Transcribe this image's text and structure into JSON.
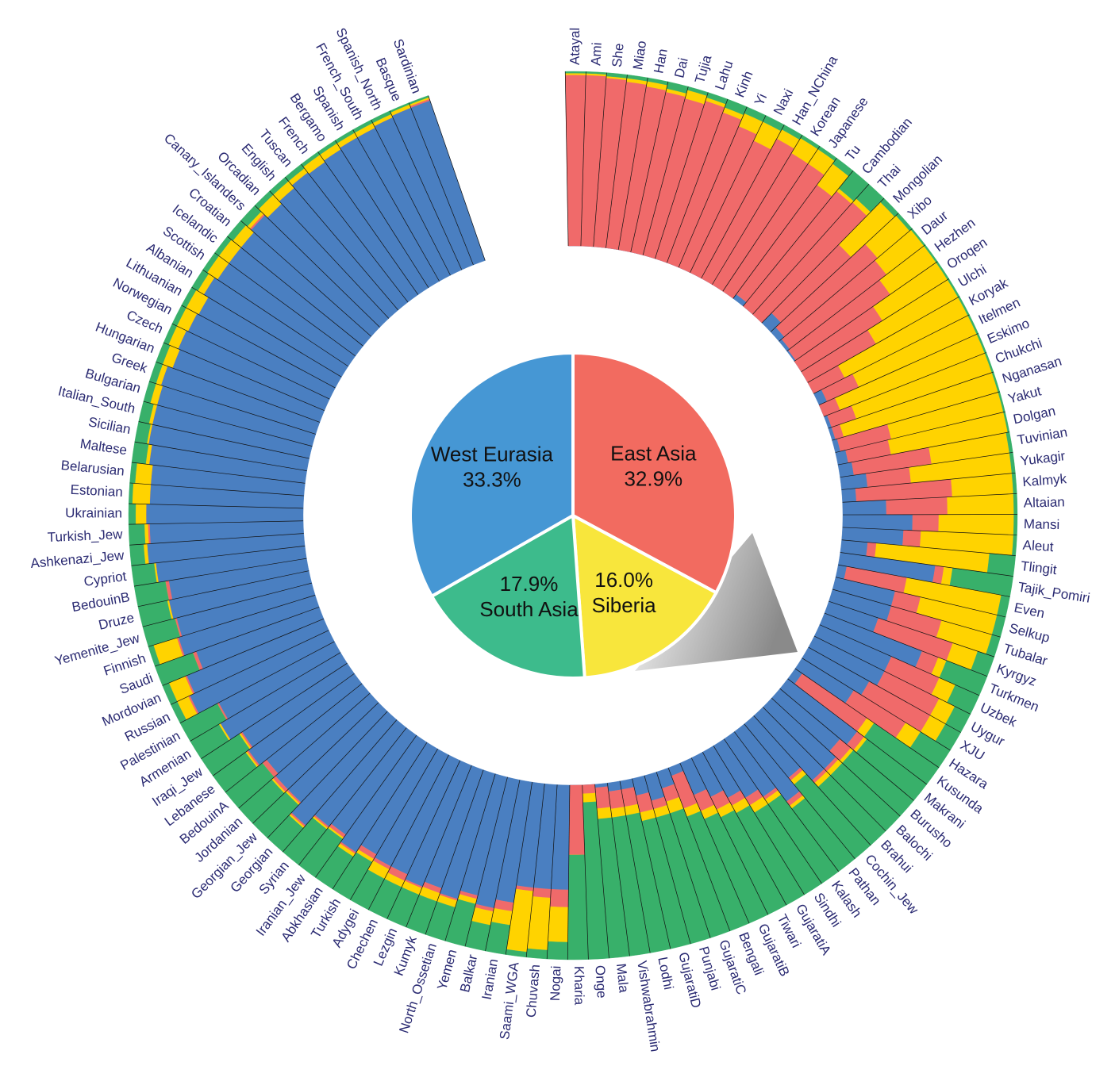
{
  "chart_data": [
    {
      "type": "pie",
      "categories": [
        "East Asia",
        "Siberia",
        "South Asia",
        "West Eurasia"
      ],
      "values": [
        32.9,
        16.0,
        17.9,
        33.3
      ],
      "value_labels": [
        "32.9%",
        "16.0%",
        "17.9%",
        "33.3%"
      ],
      "colors": [
        "#f26b60",
        "#f8e63c",
        "#3dbb8c",
        "#4697d4"
      ]
    },
    {
      "type": "radialbar",
      "ylim": [
        0,
        1
      ],
      "categories": [
        "Atayal",
        "Ami",
        "She",
        "Miao",
        "Han",
        "Dai",
        "Tujia",
        "Lahu",
        "Kinh",
        "Yi",
        "Naxi",
        "Han_NChina",
        "Korean",
        "Japanese",
        "Tu",
        "Cambodian",
        "Thai",
        "Mongolian",
        "Xibo",
        "Daur",
        "Hezhen",
        "Oroqen",
        "Ulchi",
        "Koryak",
        "Itelmen",
        "Eskimo",
        "Chukchi",
        "Nganasan",
        "Yakut",
        "Dolgan",
        "Tuvinian",
        "Yukagir",
        "Kalmyk",
        "Altaian",
        "Mansi",
        "Aleut",
        "Tlingit",
        "Tajik_Pomiri",
        "Even",
        "Selkup",
        "Tubalar",
        "Kyrgyz",
        "Turkmen",
        "Uzbek",
        "Uygur",
        "XJU",
        "Hazara",
        "Kusunda",
        "Makrani",
        "Burusho",
        "Balochi",
        "Brahui",
        "Cochin_Jew",
        "Pathan",
        "Kalash",
        "Sindhi",
        "GujaratiA",
        "Tiwari",
        "GujaratiB",
        "Bengali",
        "GujaratiC",
        "Punjabi",
        "GujaratiD",
        "Lodhi",
        "Vishwabrahmin",
        "Mala",
        "Onge",
        "Kharia",
        "Nogai",
        "Chuvash",
        "Saami_WGA",
        "Iranian",
        "Balkar",
        "Yemen",
        "North_Ossetian",
        "Kumyk",
        "Lezgin",
        "Chechen",
        "Adygei",
        "Turkish",
        "Abkhasian",
        "Iranian_Jew",
        "Syrian",
        "Georgian",
        "Georgian_Jew",
        "Jordanian",
        "BedouinA",
        "Lebanese",
        "Iraqi_Jew",
        "Armenian",
        "Palestinian",
        "Russian",
        "Mordovian",
        "Saudi",
        "Finnish",
        "Yemenite_Jew",
        "Druze",
        "BedouinB",
        "Cypriot",
        "Ashkenazi_Jew",
        "Turkish_Jew",
        "Ukrainian",
        "Estonian",
        "Belarusian",
        "Maltese",
        "Sicilian",
        "Italian_South",
        "Bulgarian",
        "Greek",
        "Hungarian",
        "Czech",
        "Norwegian",
        "Lithuanian",
        "Albanian",
        "Scottish",
        "Icelandic",
        "Croatian",
        "Canary_Islanders",
        "Orcadian",
        "English",
        "Tuscan",
        "French",
        "Bergamo",
        "Spanish",
        "French_South",
        "Spanish_North",
        "Basque",
        "Sardinian"
      ],
      "series": [
        {
          "color": "#4a7fc1",
          "values": [
            0,
            0,
            0,
            0,
            0,
            0,
            0,
            0,
            0,
            0,
            0,
            0,
            0,
            0,
            0.03,
            0,
            0,
            0.08,
            0.04,
            0.02,
            0.01,
            0,
            0,
            0,
            0.05,
            0,
            0.02,
            0.02,
            0.03,
            0.06,
            0.08,
            0.15,
            0.08,
            0.25,
            0.4,
            0.35,
            0.15,
            0.55,
            0.05,
            0.35,
            0.35,
            0.3,
            0.6,
            0.45,
            0.45,
            0.4,
            0.35,
            0.05,
            0.5,
            0.45,
            0.5,
            0.5,
            0.4,
            0.5,
            0.4,
            0.35,
            0.3,
            0.25,
            0.2,
            0.05,
            0.1,
            0.15,
            0.1,
            0.05,
            0.05,
            0.02,
            0,
            0,
            0.6,
            0.6,
            0.6,
            0.7,
            0.75,
            0.7,
            0.75,
            0.72,
            0.75,
            0.72,
            0.72,
            0.7,
            0.75,
            0.7,
            0.72,
            0.8,
            0.72,
            0.72,
            0.7,
            0.75,
            0.72,
            0.8,
            0.75,
            0.88,
            0.85,
            0.75,
            0.82,
            0.8,
            0.82,
            0.8,
            0.86,
            0.9,
            0.88,
            0.9,
            0.88,
            0.88,
            0.9,
            0.92,
            0.92,
            0.92,
            0.93,
            0.9,
            0.91,
            0.9,
            0.89,
            0.92,
            0.9,
            0.9,
            0.9,
            0.92,
            0.9,
            0.92,
            0.94,
            0.93,
            0.94,
            0.95,
            0.95,
            0.96,
            0.97,
            0.97
          ]
        },
        {
          "color": "#f06a6a",
          "values": [
            0.98,
            0.98,
            0.97,
            0.96,
            0.95,
            0.94,
            0.93,
            0.95,
            0.92,
            0.88,
            0.84,
            0.91,
            0.88,
            0.88,
            0.78,
            0.85,
            0.86,
            0.55,
            0.7,
            0.7,
            0.66,
            0.55,
            0.45,
            0.2,
            0.2,
            0.1,
            0.15,
            0.05,
            0.3,
            0.25,
            0.45,
            0.25,
            0.55,
            0.35,
            0.15,
            0.1,
            0.05,
            0.05,
            0.35,
            0.15,
            0.3,
            0.45,
            0.1,
            0.3,
            0.35,
            0.4,
            0.35,
            0.45,
            0.05,
            0.08,
            0.02,
            0.02,
            0.02,
            0.03,
            0.02,
            0.05,
            0.05,
            0.08,
            0.1,
            0.2,
            0.08,
            0.05,
            0.1,
            0.1,
            0.1,
            0.12,
            0.05,
            0.4,
            0.1,
            0.05,
            0.02,
            0.05,
            0.02,
            0.02,
            0.01,
            0.03,
            0.01,
            0.04,
            0.02,
            0.03,
            0.01,
            0.02,
            0.01,
            0.01,
            0.01,
            0.02,
            0.03,
            0.01,
            0.01,
            0,
            0.01,
            0.01,
            0.01,
            0.02,
            0.01,
            0.01,
            0,
            0.02,
            0,
            0,
            0.01,
            0,
            0,
            0,
            0,
            0,
            0,
            0,
            0,
            0,
            0,
            0,
            0,
            0,
            0,
            0,
            0,
            0.01,
            0,
            0,
            0,
            0,
            0,
            0,
            0,
            0,
            0,
            0.01
          ]
        },
        {
          "color": "#ffd300",
          "values": [
            0.01,
            0.01,
            0.01,
            0.02,
            0.03,
            0.02,
            0.05,
            0.02,
            0.03,
            0.08,
            0.12,
            0.06,
            0.1,
            0.1,
            0.15,
            0.02,
            0.03,
            0.34,
            0.24,
            0.27,
            0.32,
            0.44,
            0.54,
            0.79,
            0.74,
            0.89,
            0.82,
            0.92,
            0.66,
            0.68,
            0.45,
            0.58,
            0.35,
            0.38,
            0.43,
            0.53,
            0.65,
            0.05,
            0.55,
            0.45,
            0.3,
            0.15,
            0.05,
            0.1,
            0.1,
            0.1,
            0.1,
            0.05,
            0.02,
            0.02,
            0.03,
            0.03,
            0.03,
            0.02,
            0.03,
            0.05,
            0.05,
            0.05,
            0.05,
            0.05,
            0.07,
            0.05,
            0.05,
            0.05,
            0.05,
            0.06,
            0.05,
            0,
            0.2,
            0.3,
            0.35,
            0.08,
            0.08,
            0.03,
            0.04,
            0.05,
            0.04,
            0.04,
            0.06,
            0.02,
            0.02,
            0.01,
            0.01,
            0.01,
            0.01,
            0.01,
            0,
            0.01,
            0.01,
            0.01,
            0,
            0.07,
            0.1,
            0,
            0.14,
            0,
            0.01,
            0,
            0.01,
            0.02,
            0.02,
            0.06,
            0.1,
            0.09,
            0.02,
            0.01,
            0.02,
            0.04,
            0.03,
            0.06,
            0.06,
            0.07,
            0.08,
            0.04,
            0.07,
            0.07,
            0.06,
            0.02,
            0.07,
            0.05,
            0.03,
            0.05,
            0.04,
            0.03,
            0.03,
            0.02,
            0.02,
            0.01
          ]
        },
        {
          "color": "#38b06a",
          "values": [
            0.01,
            0.01,
            0.02,
            0.02,
            0.02,
            0.04,
            0.02,
            0.03,
            0.05,
            0.04,
            0.04,
            0.03,
            0.02,
            0.02,
            0.04,
            0.13,
            0.11,
            0.03,
            0.02,
            0.01,
            0.01,
            0.01,
            0.01,
            0.01,
            0.01,
            0.01,
            0.01,
            0.01,
            0.01,
            0.01,
            0.02,
            0.02,
            0.02,
            0.02,
            0.02,
            0.02,
            0.15,
            0.35,
            0.05,
            0.05,
            0.05,
            0.1,
            0.25,
            0.15,
            0.1,
            0.1,
            0.2,
            0.45,
            0.43,
            0.45,
            0.45,
            0.45,
            0.55,
            0.45,
            0.55,
            0.55,
            0.6,
            0.62,
            0.65,
            0.7,
            0.75,
            0.75,
            0.75,
            0.8,
            0.8,
            0.8,
            0.9,
            0.6,
            0.1,
            0.05,
            0.03,
            0.17,
            0.15,
            0.25,
            0.2,
            0.2,
            0.2,
            0.2,
            0.2,
            0.25,
            0.22,
            0.27,
            0.26,
            0.18,
            0.26,
            0.25,
            0.27,
            0.23,
            0.26,
            0.19,
            0.24,
            0.04,
            0.04,
            0.23,
            0.03,
            0.19,
            0.17,
            0.18,
            0.13,
            0.08,
            0.09,
            0.04,
            0.02,
            0.03,
            0.08,
            0.07,
            0.06,
            0.04,
            0.04,
            0.04,
            0.03,
            0.03,
            0.03,
            0.04,
            0.03,
            0.03,
            0.04,
            0.05,
            0.03,
            0.03,
            0.03,
            0.02,
            0.02,
            0.02,
            0.02,
            0.02,
            0.01,
            0.01
          ]
        }
      ]
    }
  ]
}
